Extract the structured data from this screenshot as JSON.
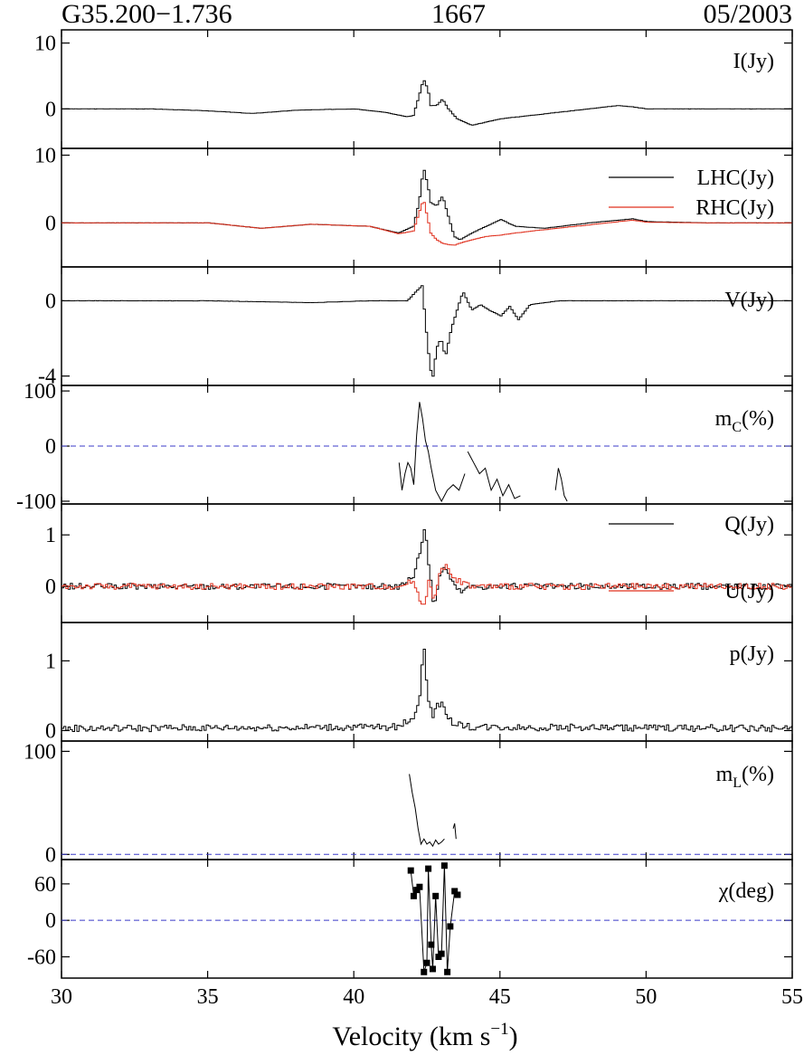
{
  "header": {
    "source": "G35.200−1.736",
    "frequency": "1667",
    "epoch": "05/2003"
  },
  "xaxis": {
    "label_main": "Velocity (km s",
    "label_sup": "−1",
    "label_close": ")",
    "range": [
      30,
      55
    ],
    "ticks": [
      30,
      35,
      40,
      45,
      50,
      55
    ]
  },
  "colors": {
    "line": "#000000",
    "red": "#e0301e",
    "dashed": "#3b3bc8"
  },
  "chart_data": [
    {
      "id": "I",
      "type": "line",
      "label": "I(Jy)",
      "ylim": [
        -6,
        12
      ],
      "ticks": [
        {
          "v": 10,
          "t": "10"
        },
        {
          "v": 0,
          "t": "0"
        }
      ],
      "series": [
        {
          "name": "I(Jy)",
          "color": "#000000",
          "step": true,
          "x": [
            30,
            31,
            33,
            35,
            36.5,
            38,
            40,
            41,
            41.8,
            42.0,
            42.2,
            42.35,
            42.5,
            42.6,
            42.8,
            43.0,
            43.2,
            43.5,
            44,
            44.5,
            45,
            46,
            47,
            48,
            49,
            49.5,
            50,
            52,
            55
          ],
          "y": [
            0,
            0,
            0,
            -0.3,
            -0.7,
            -0.2,
            0,
            -0.5,
            -1.2,
            -1.0,
            2.0,
            4.5,
            3.0,
            0.5,
            0.5,
            1.5,
            0,
            -1.5,
            -2.5,
            -2.0,
            -1.5,
            -1.0,
            -0.5,
            0,
            0.5,
            0.3,
            0,
            0,
            0
          ]
        }
      ]
    },
    {
      "id": "LR",
      "type": "line",
      "label": "",
      "ylim": [
        -6.5,
        11
      ],
      "ticks": [
        {
          "v": 10,
          "t": "10"
        },
        {
          "v": 0,
          "t": "0"
        }
      ],
      "series": [
        {
          "name": "LHC(Jy)",
          "color": "#000000",
          "step": true,
          "x": [
            30,
            33,
            35,
            36.8,
            38.5,
            40.5,
            41.5,
            42.0,
            42.2,
            42.35,
            42.5,
            42.6,
            42.8,
            43.0,
            43.2,
            43.4,
            43.6,
            44.0,
            44.5,
            45.0,
            45.5,
            46.5,
            48,
            49.5,
            50,
            52,
            55
          ],
          "y": [
            0,
            0,
            0,
            -0.8,
            -0.2,
            -0.5,
            -1.5,
            -0.5,
            3,
            8.2,
            5.5,
            3,
            2.5,
            4,
            1,
            -2,
            -2.5,
            -1.5,
            -0.5,
            0.5,
            -0.5,
            -0.8,
            0,
            0.6,
            0.2,
            0,
            0
          ]
        },
        {
          "name": "RHC(Jy)",
          "color": "#e0301e",
          "step": true,
          "x": [
            30,
            33,
            35,
            36.8,
            38.5,
            40.5,
            41.5,
            42.0,
            42.2,
            42.35,
            42.5,
            42.6,
            42.8,
            43.0,
            43.2,
            43.4,
            43.6,
            44.0,
            44.5,
            45.0,
            45.5,
            46.5,
            48,
            49.5,
            50,
            52,
            55
          ],
          "y": [
            0,
            0,
            0,
            -0.8,
            -0.2,
            -0.5,
            -1.6,
            -1.2,
            1.5,
            3.5,
            0.5,
            -1.5,
            -2.5,
            -3,
            -3.2,
            -3.3,
            -3.0,
            -2.5,
            -2.0,
            -1.8,
            -1.5,
            -1.0,
            -0.3,
            0.4,
            0.1,
            0,
            0
          ]
        }
      ],
      "legend": [
        {
          "text": "LHC(Jy)",
          "color": "#000000"
        },
        {
          "text": "RHC(Jy)",
          "color": "#e0301e"
        }
      ]
    },
    {
      "id": "V",
      "type": "line",
      "label": "V(Jy)",
      "ylim": [
        -4.5,
        1.8
      ],
      "ticks": [
        {
          "v": 0,
          "t": "0"
        },
        {
          "v": -4,
          "t": "-4"
        }
      ],
      "series": [
        {
          "name": "V(Jy)",
          "color": "#000000",
          "step": true,
          "x": [
            30,
            35,
            38.5,
            40.5,
            41.8,
            42.1,
            42.3,
            42.5,
            42.65,
            42.8,
            42.95,
            43.1,
            43.3,
            43.5,
            43.7,
            44.0,
            44.3,
            44.6,
            45.0,
            45.3,
            45.6,
            46.0,
            47,
            50,
            55
          ],
          "y": [
            0,
            0,
            -0.1,
            0,
            0,
            0.5,
            0.8,
            -2.5,
            -4.3,
            -2.5,
            -2.0,
            -3.0,
            -1.5,
            -0.5,
            0.5,
            -0.5,
            -0.2,
            -0.5,
            -0.8,
            -0.3,
            -1.0,
            -0.2,
            0,
            0,
            0
          ]
        }
      ]
    },
    {
      "id": "mc",
      "type": "line",
      "label_main": "m",
      "label_sub": "C",
      "label_tail": "(%)",
      "ylim": [
        -105,
        110
      ],
      "ticks": [
        {
          "v": 100,
          "t": "100"
        },
        {
          "v": 0,
          "t": "0"
        },
        {
          "v": -100,
          "t": "-100"
        }
      ],
      "zero_line": true,
      "segments": [
        {
          "x": [
            41.55,
            41.65,
            41.75,
            41.85,
            41.95,
            42.05,
            42.15,
            42.25,
            42.35,
            42.45,
            42.55,
            42.65,
            42.8,
            43.0,
            43.2,
            43.4,
            43.6,
            43.8
          ],
          "y": [
            -30,
            -80,
            -50,
            -30,
            -40,
            -70,
            20,
            80,
            50,
            10,
            -10,
            -40,
            -80,
            -100,
            -80,
            -70,
            -80,
            -50
          ]
        },
        {
          "x": [
            43.9,
            44.1,
            44.3,
            44.5,
            44.7,
            44.9,
            45.1,
            45.3,
            45.5,
            45.7
          ],
          "y": [
            -10,
            -30,
            -50,
            -40,
            -80,
            -60,
            -90,
            -70,
            -95,
            -90
          ]
        },
        {
          "x": [
            46.9,
            47.0,
            47.1,
            47.2,
            47.3
          ],
          "y": [
            -80,
            -40,
            -60,
            -90,
            -100
          ]
        }
      ]
    },
    {
      "id": "QU",
      "type": "line",
      "label": "",
      "ylim": [
        -0.7,
        1.6
      ],
      "ticks": [
        {
          "v": 1,
          "t": "1"
        },
        {
          "v": 0,
          "t": "0"
        }
      ],
      "series": [
        {
          "name": "Q(Jy)",
          "color": "#000000",
          "step": true,
          "noise": 0.06,
          "x": [
            30,
            41.5,
            42.0,
            42.2,
            42.4,
            42.55,
            42.7,
            42.9,
            43.1,
            43.3,
            43.6,
            44.0,
            55
          ],
          "y": [
            0,
            0,
            0.2,
            0.6,
            1.2,
            0.3,
            -0.4,
            0.2,
            0.4,
            0.1,
            -0.1,
            0,
            0
          ]
        },
        {
          "name": "U(Jy)",
          "color": "#e0301e",
          "step": true,
          "noise": 0.06,
          "x": [
            30,
            41.5,
            42.0,
            42.2,
            42.4,
            42.55,
            42.7,
            42.9,
            43.1,
            43.3,
            43.6,
            44.0,
            55
          ],
          "y": [
            0,
            0,
            0.1,
            -0.2,
            -0.4,
            0.2,
            -0.3,
            0.3,
            0.4,
            0.2,
            0.1,
            0,
            0
          ]
        }
      ],
      "legend": [
        {
          "text": "Q(Jy)",
          "color": "#000000"
        },
        {
          "text": "U(Jy)",
          "color": "#e0301e"
        }
      ]
    },
    {
      "id": "p",
      "type": "line",
      "label": "p(Jy)",
      "ylim": [
        -0.15,
        1.55
      ],
      "ticks": [
        {
          "v": 1,
          "t": "1"
        },
        {
          "v": 0,
          "t": "0"
        }
      ],
      "series": [
        {
          "name": "p(Jy)",
          "color": "#000000",
          "step": true,
          "noise": 0.05,
          "x": [
            30,
            41.5,
            42.0,
            42.2,
            42.35,
            42.5,
            42.65,
            42.85,
            43.0,
            43.2,
            43.5,
            44.0,
            55
          ],
          "y": [
            0.03,
            0.05,
            0.2,
            0.4,
            1.25,
            0.5,
            0.2,
            0.4,
            0.35,
            0.15,
            0.1,
            0.05,
            0.03
          ]
        }
      ]
    },
    {
      "id": "mL",
      "type": "line",
      "label_main": "m",
      "label_sub": "L",
      "label_tail": "(%)",
      "ylim": [
        -5,
        110
      ],
      "ticks": [
        {
          "v": 100,
          "t": "100"
        },
        {
          "v": 0,
          "t": "0"
        }
      ],
      "zero_line": true,
      "segments": [
        {
          "x": [
            41.9,
            42.0,
            42.1,
            42.2,
            42.3,
            42.4,
            42.5,
            42.6,
            42.7,
            42.8,
            42.9,
            43.0,
            43.1
          ],
          "y": [
            78,
            60,
            45,
            25,
            10,
            15,
            10,
            12,
            8,
            14,
            10,
            12,
            15
          ]
        },
        {
          "x": [
            43.4,
            43.45,
            43.5
          ],
          "y": [
            25,
            30,
            15
          ]
        }
      ]
    },
    {
      "id": "chi",
      "type": "scatter",
      "label": "χ(deg)",
      "ylim": [
        -95,
        100
      ],
      "ticks": [
        {
          "v": 60,
          "t": "60"
        },
        {
          "v": 0,
          "t": "0"
        },
        {
          "v": -60,
          "t": "-60"
        }
      ],
      "zero_line": true,
      "points": {
        "x": [
          41.95,
          42.05,
          42.15,
          42.25,
          42.4,
          42.5,
          42.55,
          42.65,
          42.7,
          42.8,
          42.9,
          43.0,
          43.1,
          43.2,
          43.3,
          43.45,
          43.55
        ],
        "y": [
          82,
          40,
          50,
          55,
          -85,
          -70,
          85,
          -40,
          -80,
          40,
          -60,
          -55,
          90,
          -85,
          -10,
          48,
          42
        ]
      }
    }
  ]
}
